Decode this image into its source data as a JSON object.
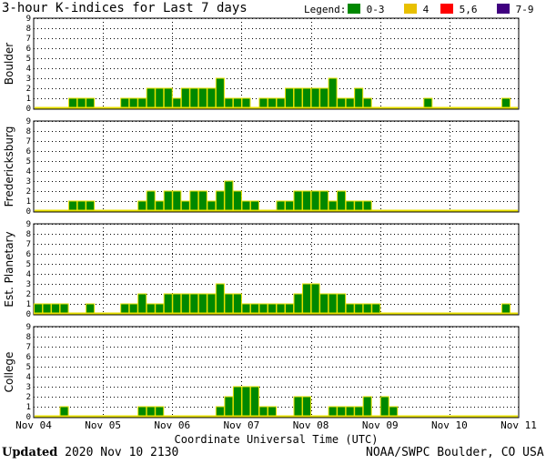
{
  "header": {
    "title": "3-hour K-indices for Last 7 days",
    "legend_label": "Legend:",
    "legend": [
      {
        "label": "0-3",
        "color": "#008800"
      },
      {
        "label": "4",
        "color": "#e8c000"
      },
      {
        "label": "5,6",
        "color": "#ff0000"
      },
      {
        "label": "7-9",
        "color": "#400080"
      }
    ]
  },
  "footer": {
    "updated_label": "Updated",
    "updated_value": "2020 Nov 10 2130",
    "credit": "NOAA/SWPC Boulder, CO USA"
  },
  "chart_data": {
    "type": "bar",
    "xlabel": "Coordinate Universal Time (UTC)",
    "x_tick_labels": [
      "Nov 04",
      "Nov 05",
      "Nov 06",
      "Nov 07",
      "Nov 08",
      "Nov 09",
      "Nov 10",
      "Nov 11"
    ],
    "y_tick_labels": [
      "0",
      "1",
      "2",
      "3",
      "4",
      "5",
      "6",
      "7",
      "8",
      "9"
    ],
    "ylim": [
      0,
      9
    ],
    "bars_per_day": 8,
    "grid": true,
    "bar_color": "#008800",
    "bar_edge_color": "#e8e000",
    "baseline_color": "#e8e000",
    "series": [
      {
        "name": "Boulder",
        "values": [
          0,
          0,
          0,
          0,
          1,
          1,
          1,
          0,
          0,
          0,
          1,
          1,
          1,
          2,
          2,
          2,
          1,
          2,
          2,
          2,
          2,
          3,
          1,
          1,
          1,
          0,
          1,
          1,
          1,
          2,
          2,
          2,
          2,
          2,
          3,
          1,
          1,
          2,
          1,
          0,
          0,
          0,
          0,
          0,
          0,
          1,
          0,
          0,
          0,
          0,
          0,
          0,
          0,
          0,
          1,
          0,
          0
        ]
      },
      {
        "name": "Fredericksburg",
        "values": [
          0,
          0,
          0,
          0,
          1,
          1,
          1,
          0,
          0,
          0,
          0,
          0,
          1,
          2,
          1,
          2,
          2,
          1,
          2,
          2,
          1,
          2,
          3,
          2,
          1,
          1,
          0,
          0,
          1,
          1,
          2,
          2,
          2,
          2,
          1,
          2,
          1,
          1,
          1,
          0,
          0,
          0,
          0,
          0,
          0,
          0,
          0,
          0,
          0,
          0,
          0,
          0,
          0,
          0,
          0,
          0,
          0
        ]
      },
      {
        "name": "Est. Planetary",
        "values": [
          1,
          1,
          1,
          1,
          0,
          0,
          1,
          0,
          0,
          0,
          1,
          1,
          2,
          1,
          1,
          2,
          2,
          2,
          2,
          2,
          2,
          3,
          2,
          2,
          1,
          1,
          1,
          1,
          1,
          1,
          2,
          3,
          3,
          2,
          2,
          2,
          1,
          1,
          1,
          1,
          0,
          0,
          0,
          0,
          0,
          0,
          0,
          0,
          0,
          0,
          0,
          0,
          0,
          0,
          1,
          0,
          0
        ]
      },
      {
        "name": "College",
        "values": [
          0,
          0,
          0,
          1,
          0,
          0,
          0,
          0,
          0,
          0,
          0,
          0,
          1,
          1,
          1,
          0,
          0,
          0,
          0,
          0,
          0,
          1,
          2,
          3,
          3,
          3,
          1,
          1,
          0,
          0,
          2,
          2,
          0,
          0,
          1,
          1,
          1,
          1,
          2,
          0,
          2,
          1,
          0,
          0,
          0,
          0,
          0,
          0,
          0,
          0,
          0,
          0,
          0,
          0,
          0,
          0,
          0
        ]
      }
    ]
  }
}
